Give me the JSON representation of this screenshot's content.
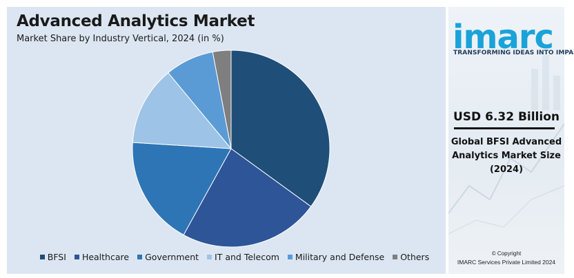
{
  "header": {
    "title": "Advanced Analytics Market",
    "subtitle": "Market Share by Industry Vertical, 2024 (in %)"
  },
  "chart_data": {
    "type": "pie",
    "categories": [
      "BFSI",
      "Healthcare",
      "Government",
      "IT and Telecom",
      "Military and Defense",
      "Others"
    ],
    "values": [
      35,
      23,
      18,
      13,
      8,
      3
    ],
    "colors": [
      "#1f4e79",
      "#2e5597",
      "#2e75b6",
      "#9dc3e6",
      "#5b9bd5",
      "#7f7f7f"
    ],
    "legend_position": "bottom"
  },
  "sidebar": {
    "logo": "imarc",
    "tagline": "TRANSFORMING IDEAS INTO IMPACT",
    "kpi_value": "USD 6.32 Billion",
    "kpi_label_lines": [
      "Global BFSI Advanced",
      "Analytics Market Size",
      "(2024)"
    ],
    "copyright_line1": "© Copyright",
    "copyright_line2": "IMARC Services Private Limited 2024"
  }
}
